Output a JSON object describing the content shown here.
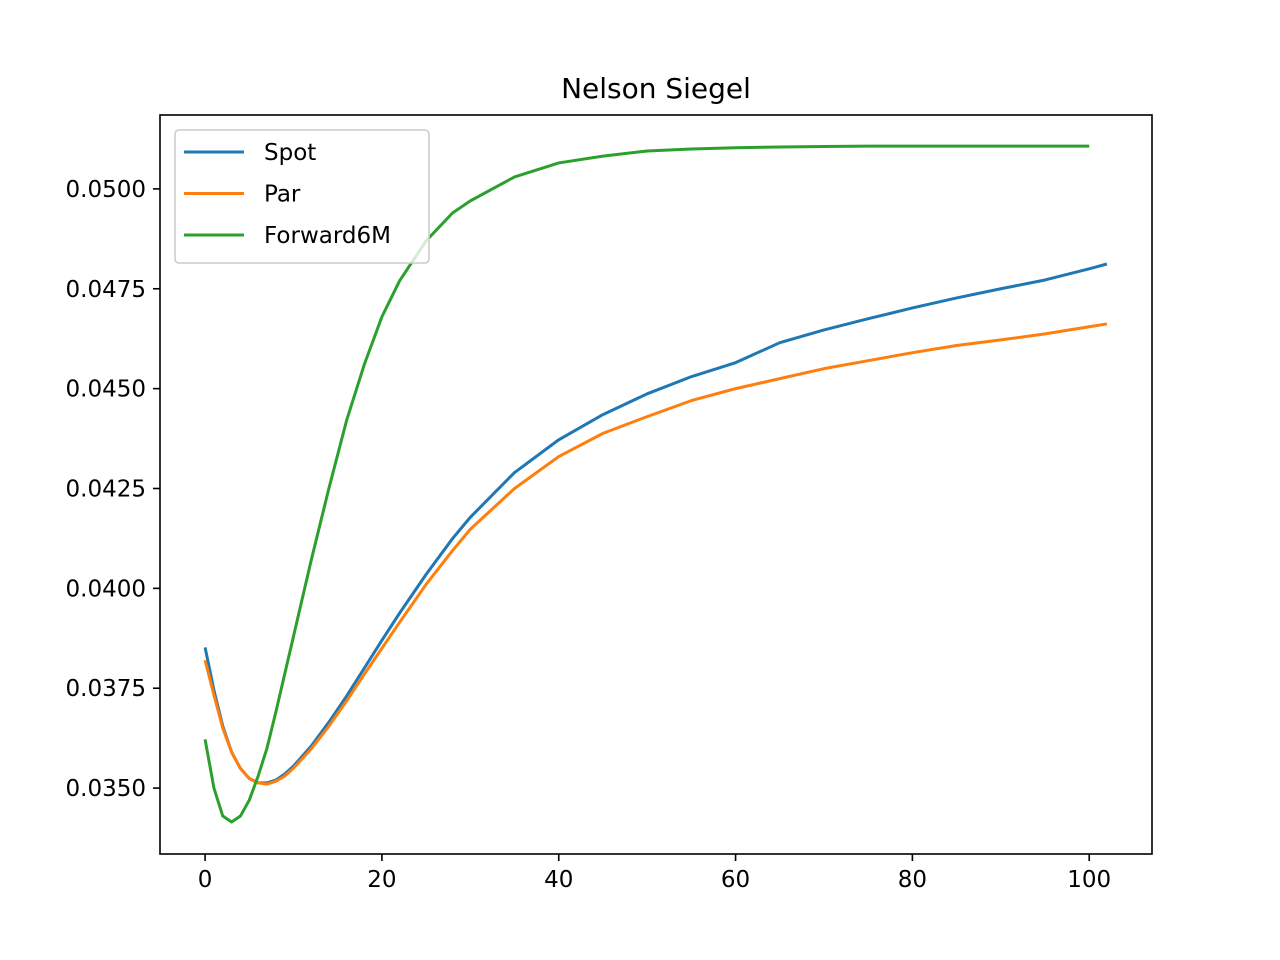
{
  "chart_data": {
    "type": "line",
    "title": "Nelson Siegel",
    "xlabel": "",
    "ylabel": "",
    "xlim": [
      -5.1,
      107.1
    ],
    "ylim": [
      0.03335,
      0.05185
    ],
    "xticks": [
      0,
      20,
      40,
      60,
      80,
      100
    ],
    "xtick_labels": [
      "0",
      "20",
      "40",
      "60",
      "80",
      "100"
    ],
    "yticks": [
      0.035,
      0.0375,
      0.04,
      0.0425,
      0.045,
      0.0475,
      0.05
    ],
    "ytick_labels": [
      "0.0350",
      "0.0375",
      "0.0400",
      "0.0425",
      "0.0450",
      "0.0475",
      "0.0500"
    ],
    "grid": false,
    "legend_position": "upper-left",
    "series": [
      {
        "name": "Spot",
        "color": "#1f77b4",
        "x": [
          0,
          1,
          2,
          3,
          4,
          5,
          6,
          7,
          8,
          9,
          10,
          12,
          14,
          16,
          18,
          20,
          22,
          25,
          28,
          30,
          35,
          40,
          45,
          50,
          55,
          60,
          65,
          70,
          75,
          80,
          85,
          90,
          95,
          100,
          102
        ],
        "y": [
          0.03852,
          0.03745,
          0.03655,
          0.0359,
          0.03549,
          0.03524,
          0.03513,
          0.03513,
          0.0352,
          0.03535,
          0.03555,
          0.03605,
          0.03665,
          0.0373,
          0.038,
          0.0387,
          0.03938,
          0.04035,
          0.04125,
          0.04178,
          0.0429,
          0.04372,
          0.04435,
          0.04487,
          0.0453,
          0.04565,
          0.04615,
          0.04647,
          0.04675,
          0.04702,
          0.04727,
          0.0475,
          0.04772,
          0.048,
          0.04812
        ]
      },
      {
        "name": "Par",
        "color": "#ff7f0e",
        "x": [
          0,
          1,
          2,
          3,
          4,
          5,
          6,
          7,
          8,
          9,
          10,
          12,
          14,
          16,
          18,
          20,
          22,
          25,
          28,
          30,
          35,
          40,
          45,
          50,
          55,
          60,
          65,
          70,
          75,
          80,
          85,
          90,
          95,
          100,
          102
        ],
        "y": [
          0.0382,
          0.03733,
          0.0365,
          0.0359,
          0.03549,
          0.03524,
          0.03513,
          0.0351,
          0.03517,
          0.0353,
          0.0355,
          0.03598,
          0.03655,
          0.03718,
          0.03785,
          0.0385,
          0.03915,
          0.0401,
          0.04095,
          0.04148,
          0.0425,
          0.0433,
          0.04388,
          0.0443,
          0.0447,
          0.045,
          0.04525,
          0.0455,
          0.0457,
          0.0459,
          0.04608,
          0.04622,
          0.04637,
          0.04655,
          0.04662
        ]
      },
      {
        "name": "Forward6M",
        "color": "#2ca02c",
        "x": [
          0,
          1,
          2,
          3,
          4,
          5,
          6,
          7,
          8,
          9,
          10,
          12,
          14,
          16,
          18,
          20,
          22,
          25,
          28,
          30,
          35,
          40,
          45,
          50,
          55,
          60,
          65,
          70,
          75,
          80,
          85,
          90,
          95,
          100
        ],
        "y": [
          0.03622,
          0.035,
          0.0343,
          0.03415,
          0.0343,
          0.0347,
          0.0353,
          0.036,
          0.0369,
          0.03785,
          0.0388,
          0.0407,
          0.0425,
          0.0442,
          0.0456,
          0.0468,
          0.0477,
          0.0487,
          0.0494,
          0.0497,
          0.0503,
          0.05065,
          0.05082,
          0.05095,
          0.051,
          0.05103,
          0.05105,
          0.05106,
          0.05107,
          0.05107,
          0.05107,
          0.05107,
          0.05107,
          0.05107
        ]
      }
    ]
  }
}
